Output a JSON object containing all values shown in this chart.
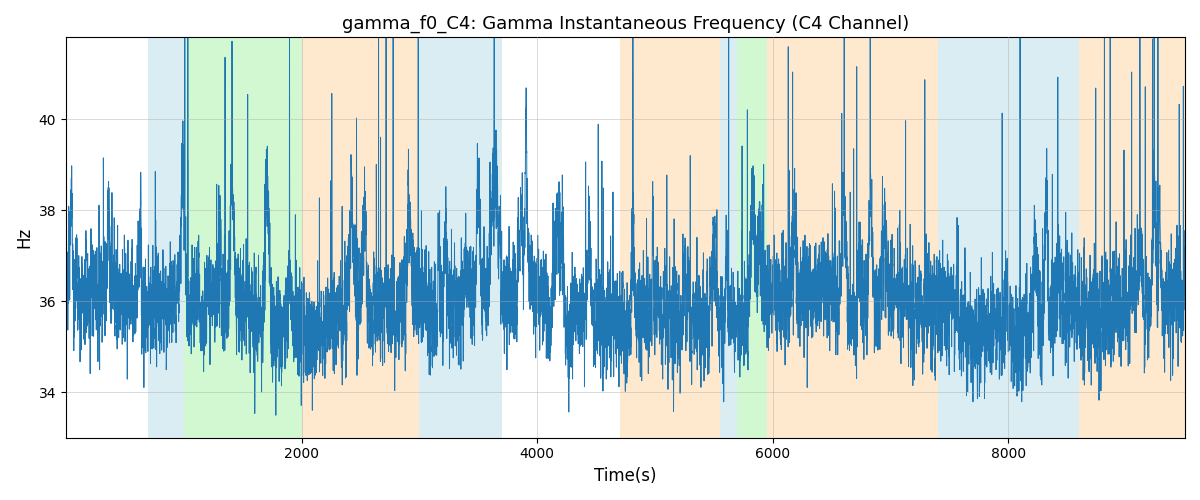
{
  "title": "gamma_f0_C4: Gamma Instantaneous Frequency (C4 Channel)",
  "xlabel": "Time(s)",
  "ylabel": "Hz",
  "xlim": [
    0,
    9500
  ],
  "ylim": [
    33.0,
    41.8
  ],
  "yticks": [
    34,
    36,
    38,
    40
  ],
  "xticks": [
    2000,
    4000,
    6000,
    8000
  ],
  "line_color": "#1f77b4",
  "line_width": 0.7,
  "bands": [
    {
      "xmin": 700,
      "xmax": 1000,
      "color": "#add8e6",
      "alpha": 0.45
    },
    {
      "xmin": 1000,
      "xmax": 2000,
      "color": "#90ee90",
      "alpha": 0.4
    },
    {
      "xmin": 2000,
      "xmax": 3000,
      "color": "#ffd59e",
      "alpha": 0.5
    },
    {
      "xmin": 3000,
      "xmax": 3700,
      "color": "#add8e6",
      "alpha": 0.45
    },
    {
      "xmin": 4700,
      "xmax": 5550,
      "color": "#ffd59e",
      "alpha": 0.5
    },
    {
      "xmin": 5550,
      "xmax": 5700,
      "color": "#add8e6",
      "alpha": 0.45
    },
    {
      "xmin": 5700,
      "xmax": 5950,
      "color": "#90ee90",
      "alpha": 0.4
    },
    {
      "xmin": 5950,
      "xmax": 7400,
      "color": "#ffd59e",
      "alpha": 0.5
    },
    {
      "xmin": 7400,
      "xmax": 8600,
      "color": "#add8e6",
      "alpha": 0.45
    },
    {
      "xmin": 8600,
      "xmax": 9500,
      "color": "#ffd59e",
      "alpha": 0.5
    }
  ],
  "grid_color": "#aaaaaa",
  "grid_alpha": 0.5,
  "seed": 12345,
  "n_points": 9500,
  "base_freq": 35.8,
  "noise_scale": 0.55,
  "spike_prob": 0.018,
  "spike_scale": 2.2
}
